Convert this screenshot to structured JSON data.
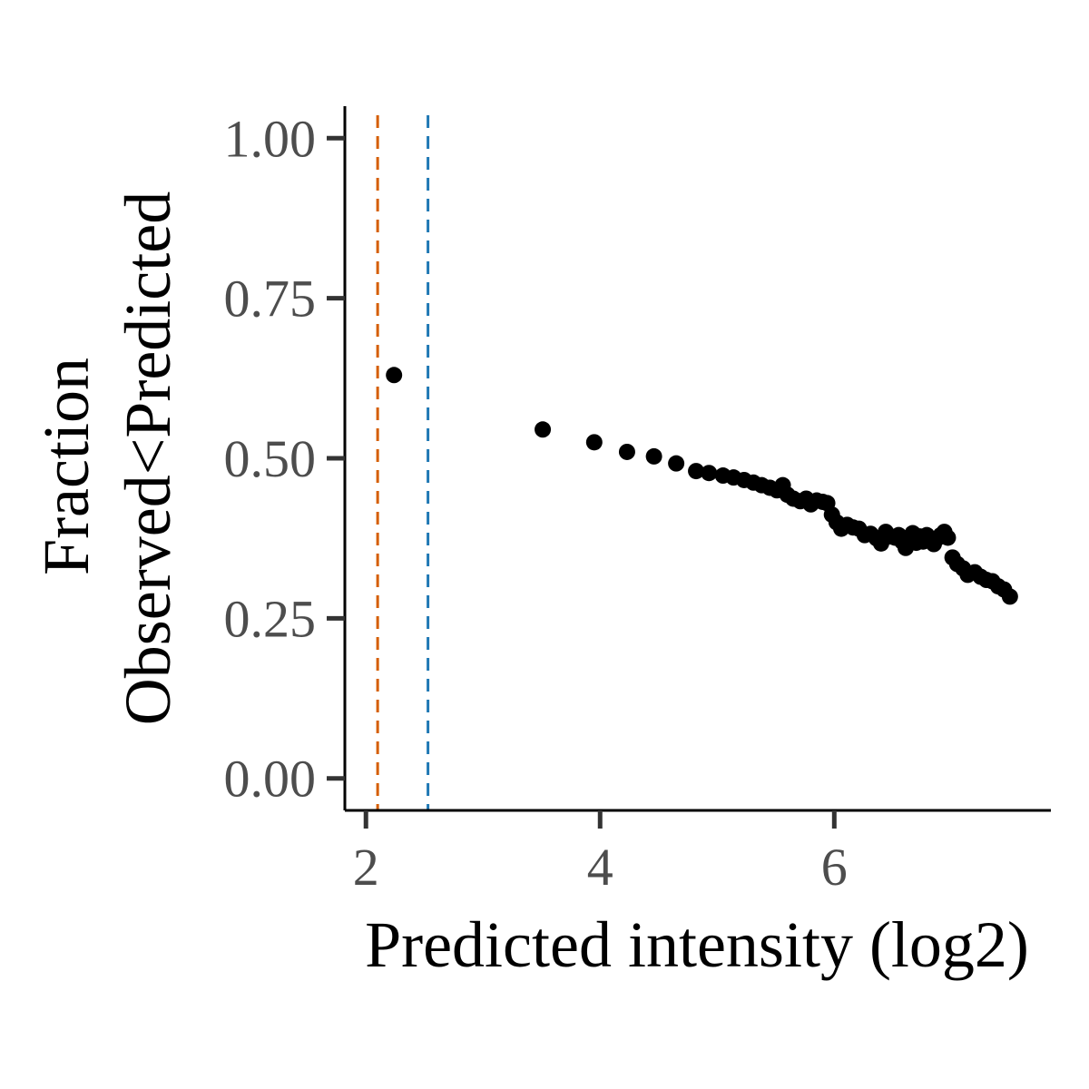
{
  "chart_data": {
    "type": "scatter",
    "xlabel": "Predicted intensity (log2)",
    "ylabel_lines": [
      "Fraction",
      "Observed<Predicted"
    ],
    "xlim": [
      1.82,
      7.85
    ],
    "ylim": [
      -0.05,
      1.05
    ],
    "x_ticks": [
      2,
      4,
      6
    ],
    "x_tick_labels": [
      "2",
      "4",
      "6"
    ],
    "y_ticks": [
      0,
      0.25,
      0.5,
      0.75,
      1
    ],
    "y_tick_labels": [
      "0.00",
      "0.25",
      "0.50",
      "0.75",
      "1.00"
    ],
    "vlines": [
      {
        "x": 2.1,
        "color": "#D55E00"
      },
      {
        "x": 2.53,
        "color": "#1F78B4"
      }
    ],
    "point_color": "#000000",
    "grid": false,
    "legend": false,
    "points": [
      [
        2.24,
        0.63
      ],
      [
        3.51,
        0.545
      ],
      [
        3.95,
        0.525
      ],
      [
        4.23,
        0.51
      ],
      [
        4.46,
        0.503
      ],
      [
        4.65,
        0.492
      ],
      [
        4.82,
        0.48
      ],
      [
        4.93,
        0.477
      ],
      [
        5.05,
        0.473
      ],
      [
        5.14,
        0.47
      ],
      [
        5.23,
        0.466
      ],
      [
        5.31,
        0.462
      ],
      [
        5.38,
        0.458
      ],
      [
        5.45,
        0.454
      ],
      [
        5.51,
        0.45
      ],
      [
        5.56,
        0.458
      ],
      [
        5.6,
        0.443
      ],
      [
        5.65,
        0.437
      ],
      [
        5.71,
        0.433
      ],
      [
        5.76,
        0.437
      ],
      [
        5.8,
        0.428
      ],
      [
        5.85,
        0.434
      ],
      [
        5.9,
        0.432
      ],
      [
        5.94,
        0.43
      ],
      [
        5.98,
        0.412
      ],
      [
        6.02,
        0.4
      ],
      [
        6.06,
        0.39
      ],
      [
        6.11,
        0.396
      ],
      [
        6.16,
        0.392
      ],
      [
        6.21,
        0.39
      ],
      [
        6.26,
        0.38
      ],
      [
        6.31,
        0.382
      ],
      [
        6.36,
        0.375
      ],
      [
        6.4,
        0.367
      ],
      [
        6.44,
        0.385
      ],
      [
        6.48,
        0.378
      ],
      [
        6.52,
        0.376
      ],
      [
        6.55,
        0.38
      ],
      [
        6.58,
        0.37
      ],
      [
        6.61,
        0.36
      ],
      [
        6.64,
        0.373
      ],
      [
        6.67,
        0.383
      ],
      [
        6.7,
        0.368
      ],
      [
        6.73,
        0.378
      ],
      [
        6.76,
        0.37
      ],
      [
        6.79,
        0.38
      ],
      [
        6.82,
        0.372
      ],
      [
        6.85,
        0.366
      ],
      [
        6.88,
        0.375
      ],
      [
        6.91,
        0.38
      ],
      [
        6.94,
        0.385
      ],
      [
        6.97,
        0.376
      ],
      [
        7.01,
        0.345
      ],
      [
        7.05,
        0.335
      ],
      [
        7.1,
        0.328
      ],
      [
        7.14,
        0.318
      ],
      [
        7.2,
        0.322
      ],
      [
        7.25,
        0.315
      ],
      [
        7.3,
        0.31
      ],
      [
        7.35,
        0.308
      ],
      [
        7.4,
        0.3
      ],
      [
        7.45,
        0.295
      ],
      [
        7.5,
        0.284
      ]
    ]
  }
}
